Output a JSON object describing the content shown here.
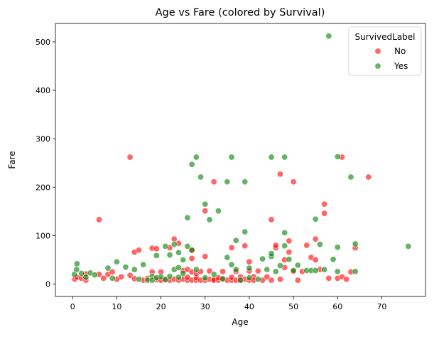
{
  "chart_data": {
    "type": "scatter",
    "title": "Age vs Fare (colored by Survival)",
    "xlabel": "Age",
    "ylabel": "Fare",
    "xlim": [
      -3.9,
      79.9
    ],
    "ylim": [
      -25.6,
      538.0
    ],
    "xticks": [
      0,
      10,
      20,
      30,
      40,
      50,
      60,
      70
    ],
    "yticks": [
      0,
      100,
      200,
      300,
      400,
      500
    ],
    "grid": false,
    "legend": {
      "title": "SurvivedLabel",
      "placement": "top-right",
      "entries": [
        {
          "label": "No",
          "color": "#ff0000"
        },
        {
          "label": "Yes",
          "color": "#008000"
        }
      ]
    },
    "series": [
      {
        "name": "No",
        "color": "#ff0000",
        "points": [
          [
            0.5,
            10
          ],
          [
            1,
            14
          ],
          [
            2,
            12
          ],
          [
            3,
            8
          ],
          [
            3,
            21
          ],
          [
            6,
            133
          ],
          [
            6,
            20
          ],
          [
            7,
            12
          ],
          [
            8,
            20
          ],
          [
            9,
            25
          ],
          [
            10,
            10
          ],
          [
            11,
            15
          ],
          [
            13,
            262
          ],
          [
            13,
            18
          ],
          [
            14,
            11
          ],
          [
            14,
            66
          ],
          [
            15,
            70
          ],
          [
            16,
            8
          ],
          [
            17,
            12
          ],
          [
            18,
            25
          ],
          [
            18,
            74
          ],
          [
            19,
            9
          ],
          [
            19,
            73
          ],
          [
            20,
            8
          ],
          [
            20,
            25
          ],
          [
            21,
            10
          ],
          [
            22,
            8
          ],
          [
            22,
            75
          ],
          [
            23,
            93
          ],
          [
            23,
            10
          ],
          [
            24,
            8
          ],
          [
            24,
            84
          ],
          [
            25,
            10
          ],
          [
            25,
            28
          ],
          [
            26,
            8
          ],
          [
            26,
            14
          ],
          [
            26,
            30
          ],
          [
            27,
            8
          ],
          [
            27,
            25
          ],
          [
            27,
            53
          ],
          [
            27,
            70
          ],
          [
            28,
            8
          ],
          [
            28,
            13
          ],
          [
            28,
            22
          ],
          [
            29,
            8
          ],
          [
            29,
            26
          ],
          [
            30,
            8
          ],
          [
            30,
            151
          ],
          [
            30,
            57
          ],
          [
            31,
            10
          ],
          [
            31,
            27
          ],
          [
            32,
            10
          ],
          [
            32,
            8
          ],
          [
            32,
            211
          ],
          [
            33,
            8
          ],
          [
            33,
            13
          ],
          [
            34,
            10
          ],
          [
            34,
            26
          ],
          [
            35,
            8
          ],
          [
            36,
            8
          ],
          [
            36,
            14
          ],
          [
            36,
            75
          ],
          [
            37,
            8
          ],
          [
            37,
            26
          ],
          [
            38,
            8
          ],
          [
            38,
            15
          ],
          [
            39,
            10
          ],
          [
            39,
            79
          ],
          [
            40,
            8
          ],
          [
            40,
            27
          ],
          [
            40,
            46
          ],
          [
            41,
            15
          ],
          [
            41,
            8
          ],
          [
            42,
            27
          ],
          [
            43,
            8
          ],
          [
            44,
            15
          ],
          [
            45,
            8
          ],
          [
            45,
            133
          ],
          [
            46,
            75
          ],
          [
            46,
            80
          ],
          [
            47,
            227
          ],
          [
            47,
            10
          ],
          [
            48,
            34
          ],
          [
            48,
            50
          ],
          [
            49,
            66
          ],
          [
            49,
            89
          ],
          [
            50,
            26
          ],
          [
            50,
            211
          ],
          [
            51,
            8
          ],
          [
            52,
            26
          ],
          [
            53,
            80
          ],
          [
            54,
            55
          ],
          [
            55,
            93
          ],
          [
            55,
            50
          ],
          [
            56,
            30
          ],
          [
            57,
            165
          ],
          [
            57,
            146
          ],
          [
            58,
            12
          ],
          [
            60,
            12
          ],
          [
            61,
            262
          ],
          [
            61,
            15
          ],
          [
            62,
            10
          ],
          [
            63,
            25
          ],
          [
            64,
            75
          ],
          [
            67,
            221
          ]
        ]
      },
      {
        "name": "Yes",
        "color": "#008000",
        "points": [
          [
            0.4,
            20
          ],
          [
            0.9,
            30
          ],
          [
            1,
            42
          ],
          [
            2,
            22
          ],
          [
            3,
            14
          ],
          [
            4,
            23
          ],
          [
            5,
            19
          ],
          [
            8,
            33
          ],
          [
            9,
            12
          ],
          [
            10,
            46
          ],
          [
            12,
            35
          ],
          [
            14,
            30
          ],
          [
            15,
            10
          ],
          [
            16,
            40
          ],
          [
            17,
            8
          ],
          [
            18,
            16
          ],
          [
            18,
            8
          ],
          [
            19,
            59
          ],
          [
            19,
            13
          ],
          [
            20,
            15
          ],
          [
            21,
            9
          ],
          [
            21,
            78
          ],
          [
            22,
            60
          ],
          [
            22,
            16
          ],
          [
            23,
            30
          ],
          [
            23,
            82
          ],
          [
            24,
            14
          ],
          [
            24,
            65
          ],
          [
            24,
            34
          ],
          [
            25,
            22
          ],
          [
            25,
            50
          ],
          [
            26,
            78
          ],
          [
            26,
            137
          ],
          [
            27,
            247
          ],
          [
            27,
            70
          ],
          [
            28,
            262
          ],
          [
            28,
            30
          ],
          [
            29,
            221
          ],
          [
            30,
            165
          ],
          [
            30,
            13
          ],
          [
            31,
            133
          ],
          [
            32,
            20
          ],
          [
            33,
            151
          ],
          [
            34,
            11
          ],
          [
            35,
            211
          ],
          [
            35,
            55
          ],
          [
            36,
            262
          ],
          [
            36,
            40
          ],
          [
            37,
            90
          ],
          [
            37,
            30
          ],
          [
            38,
            8
          ],
          [
            39,
            211
          ],
          [
            39,
            108
          ],
          [
            40,
            33
          ],
          [
            40,
            13
          ],
          [
            42,
            10
          ],
          [
            43,
            52
          ],
          [
            44,
            30
          ],
          [
            45,
            262
          ],
          [
            45,
            57
          ],
          [
            45,
            63
          ],
          [
            46,
            26
          ],
          [
            47,
            38
          ],
          [
            48,
            262
          ],
          [
            48,
            106
          ],
          [
            48,
            79
          ],
          [
            49,
            51
          ],
          [
            50,
            28
          ],
          [
            51,
            39
          ],
          [
            53,
            28
          ],
          [
            54,
            28
          ],
          [
            55,
            134
          ],
          [
            55,
            28
          ],
          [
            56,
            82
          ],
          [
            57,
            30
          ],
          [
            59,
            51
          ],
          [
            60,
            263
          ],
          [
            60,
            76
          ],
          [
            60,
            26
          ],
          [
            63,
            221
          ],
          [
            64,
            83
          ],
          [
            64,
            26
          ],
          [
            76,
            78
          ],
          [
            58,
            512
          ]
        ]
      }
    ]
  }
}
